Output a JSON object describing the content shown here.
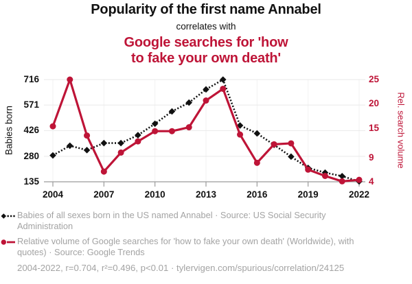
{
  "header": {
    "title": "Popularity of the first name Annabel",
    "subtitle": "correlates with",
    "red_title_line1": "Google searches for 'how",
    "red_title_line2": "to fake your own death'"
  },
  "chart_data": {
    "type": "line",
    "title": "Popularity of the first name Annabel correlates with Google searches for 'how to fake your own death'",
    "x": [
      2004,
      2005,
      2006,
      2007,
      2008,
      2009,
      2010,
      2011,
      2012,
      2013,
      2014,
      2015,
      2016,
      2017,
      2018,
      2019,
      2020,
      2021,
      2022
    ],
    "x_ticks": [
      2004,
      2007,
      2010,
      2013,
      2016,
      2019,
      2022
    ],
    "x_tick_labels": [
      "2004",
      "2007",
      "2010",
      "2013",
      "2016",
      "2019",
      "2022"
    ],
    "left_axis": {
      "label": "Babies born",
      "ticks": [
        716,
        571,
        426,
        280,
        135
      ],
      "range": [
        135,
        716
      ]
    },
    "right_axis": {
      "label": "Rel. search volume",
      "ticks": [
        25,
        20,
        15,
        9,
        4
      ],
      "range": [
        4,
        25
      ]
    },
    "grid": true,
    "legend_position": "bottom",
    "series": [
      {
        "name": "Babies of all sexes born in the US named Annabel",
        "axis": "left",
        "style": "dotted-diamond",
        "color": "#111111",
        "values": [
          285,
          340,
          315,
          355,
          355,
          400,
          465,
          535,
          585,
          660,
          716,
          455,
          410,
          345,
          278,
          214,
          187,
          167,
          137
        ]
      },
      {
        "name": "Relative volume of Google searches for 'how to fake your own death'",
        "axis": "right",
        "style": "solid-circle",
        "color": "#be1437",
        "values": [
          15.4,
          25,
          13.5,
          6.1,
          10,
          12.3,
          14.4,
          14.4,
          15.2,
          20.7,
          23.1,
          13.7,
          7.9,
          11.7,
          11.9,
          6.5,
          5.2,
          4.1,
          4.4
        ]
      }
    ]
  },
  "legend": {
    "items": [
      {
        "icon": "diamond-dotted",
        "text": "Babies of all sexes born in the US named Annabel · Source: US Social Security Administration"
      },
      {
        "icon": "circle-line",
        "text": "Relative volume of Google searches for 'how to fake your own death' (Worldwide), with quotes) · Source: Google Trends"
      }
    ],
    "footer": "2004-2022, r=0.704, r²=0.496, p<0.01 · tylervigen.com/spurious/correlation/24125"
  },
  "colors": {
    "accent_red": "#be1437",
    "series_black": "#111111",
    "grid_line": "#e9e9e9",
    "axis_line": "#9b9b9b",
    "legend_text_gray": "#a3a3a3"
  }
}
